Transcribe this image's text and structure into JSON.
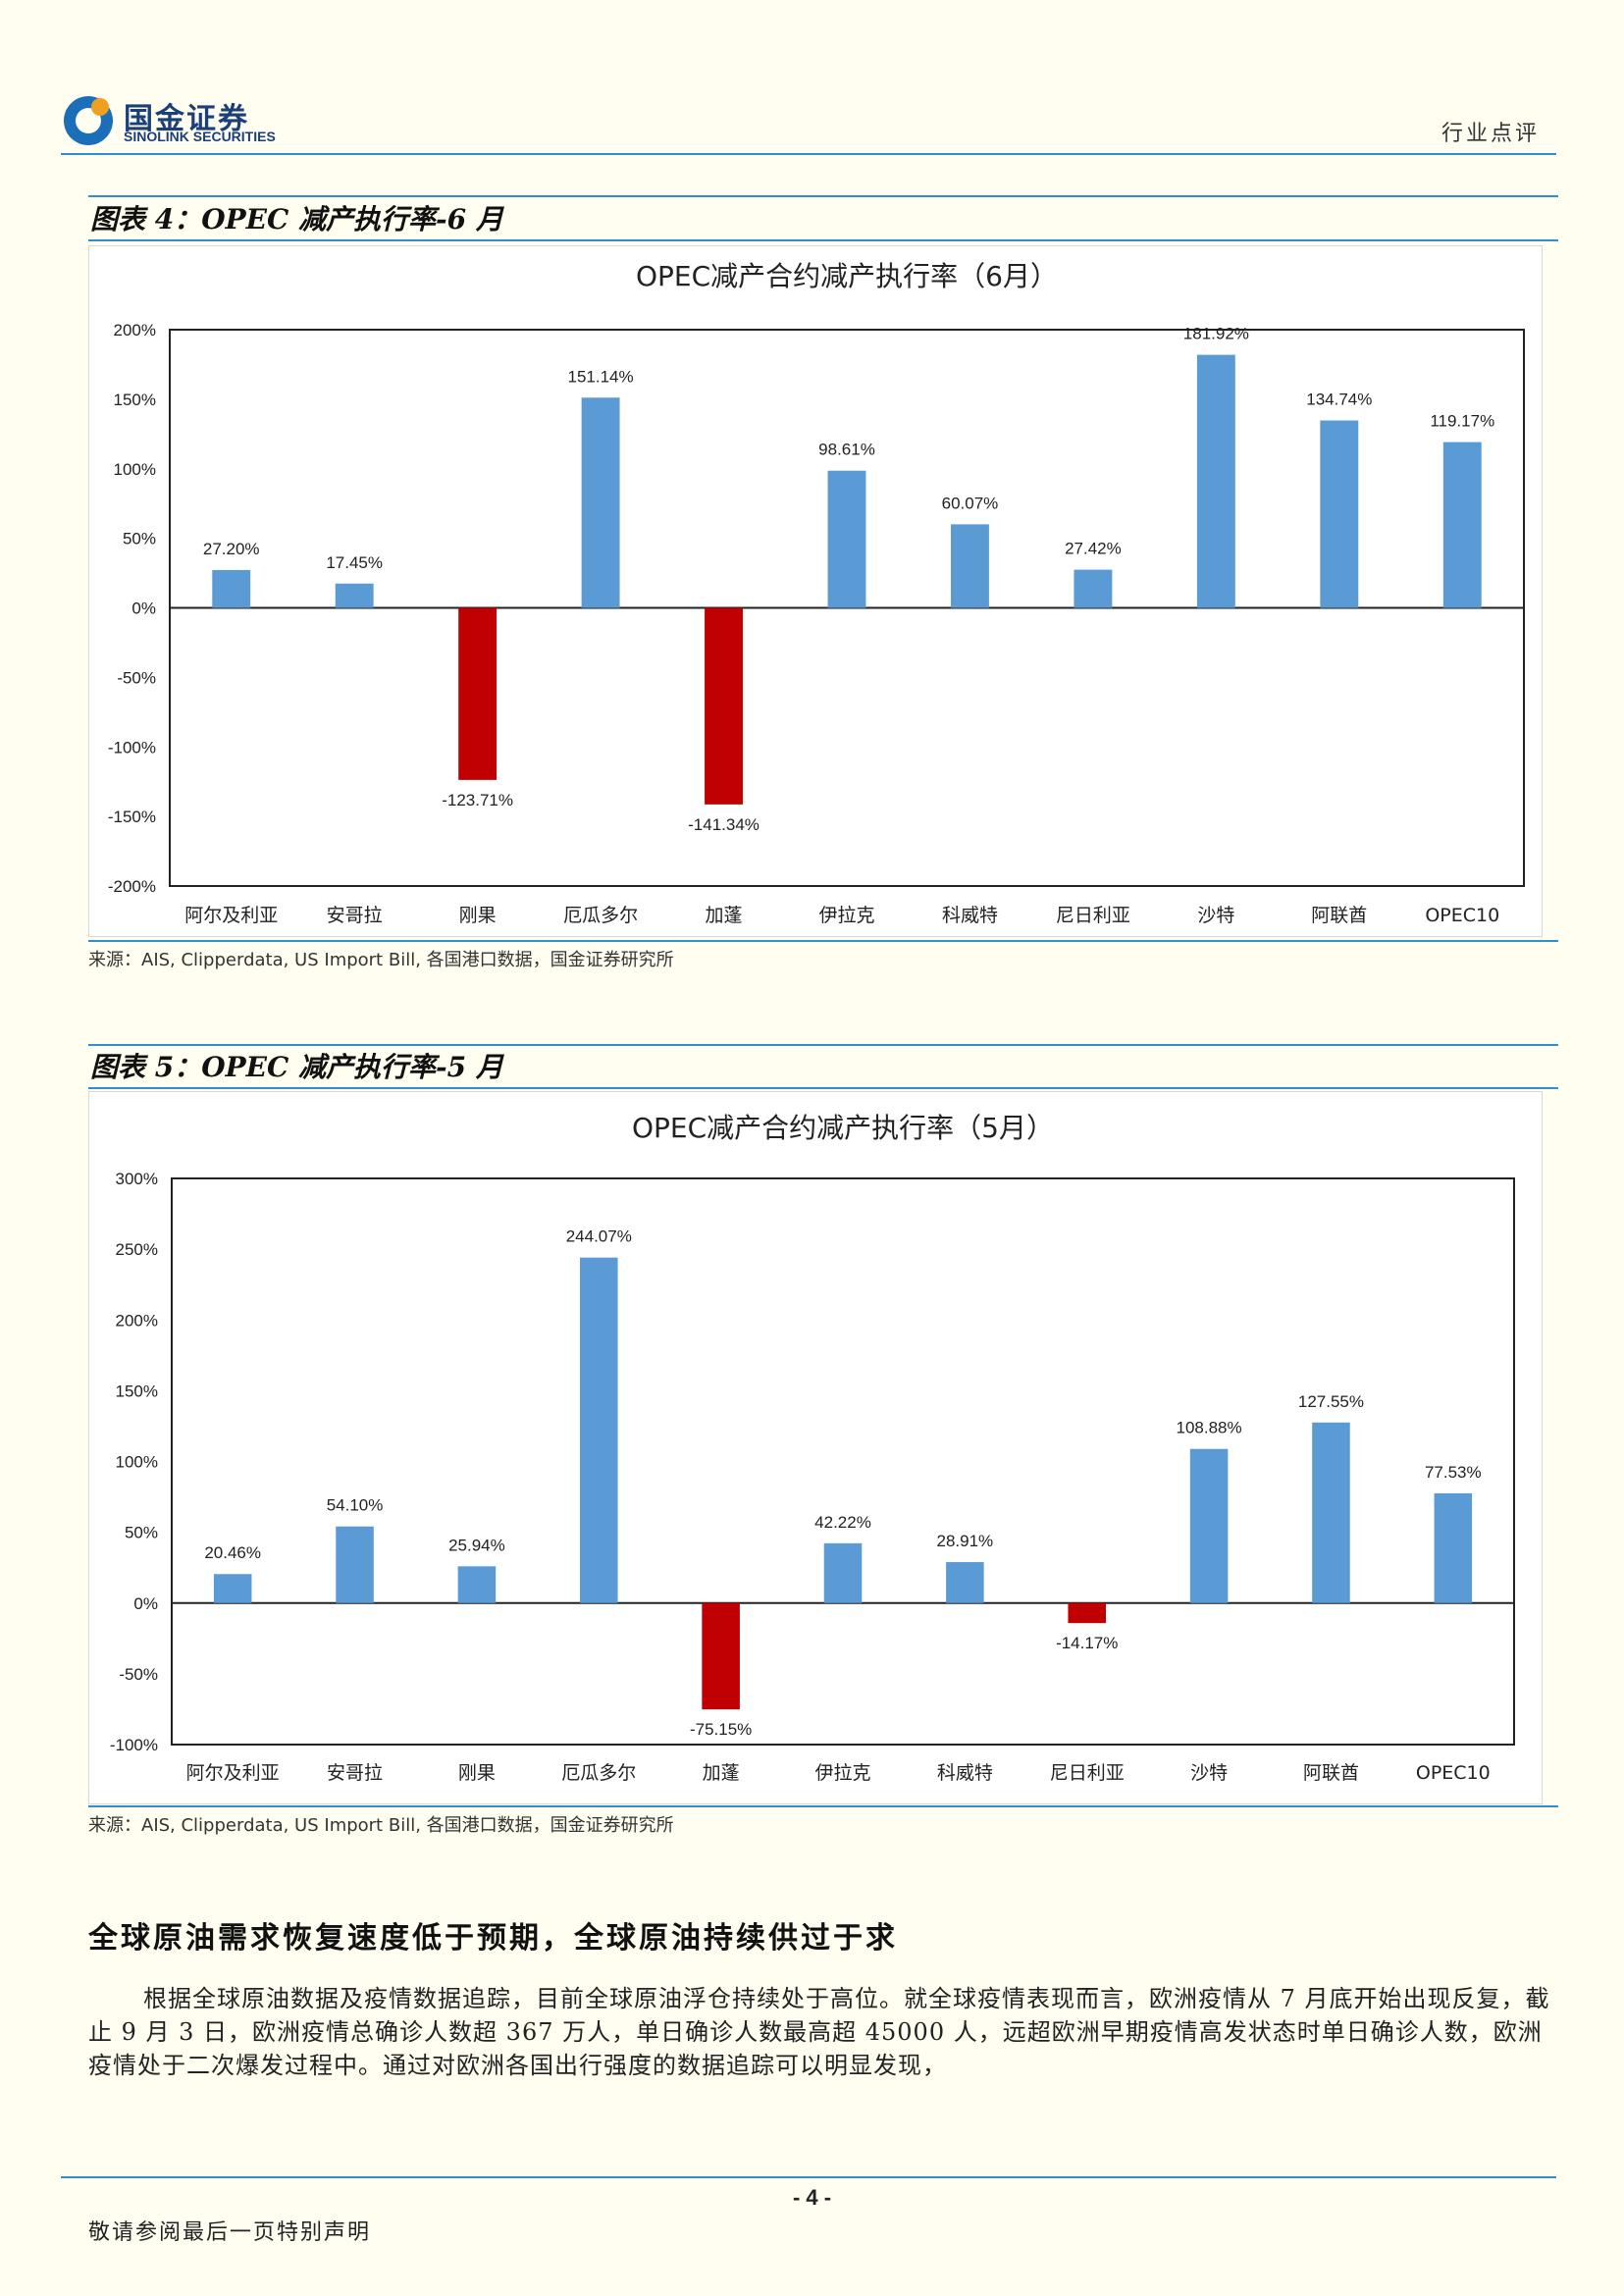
{
  "header": {
    "logo_cn": "国金证券",
    "logo_en": "SINOLINK SECURITIES",
    "section_label": "行业点评",
    "colors": {
      "rule": "#2f8fc8",
      "logo_blue": "#1a3f7a",
      "logo_orange": "#f0a020"
    }
  },
  "figures": [
    {
      "caption": "图表 4：OPEC 减产执行率-6 月",
      "source": "来源：AIS, Clipperdata, US Import Bill, 各国港口数据，国金证券研究所"
    },
    {
      "caption": "图表 5：OPEC 减产执行率-5 月",
      "source": "来源：AIS, Clipperdata, US Import Bill, 各国港口数据，国金证券研究所"
    }
  ],
  "chart_data": [
    {
      "type": "bar",
      "title": "OPEC减产合约减产执行率（6月）",
      "categories": [
        "阿尔及利亚",
        "安哥拉",
        "刚果",
        "厄瓜多尔",
        "加蓬",
        "伊拉克",
        "科威特",
        "尼日利亚",
        "沙特",
        "阿联酋",
        "OPEC10"
      ],
      "values": [
        27.2,
        17.45,
        -123.71,
        151.14,
        -141.34,
        98.61,
        60.07,
        27.42,
        181.92,
        134.74,
        119.17
      ],
      "labels": [
        "27.20%",
        "17.45%",
        "-123.71%",
        "151.14%",
        "-141.34%",
        "98.61%",
        "60.07%",
        "27.42%",
        "181.92%",
        "134.74%",
        "119.17%"
      ],
      "yticks": [
        "200%",
        "150%",
        "100%",
        "50%",
        "0%",
        "-50%",
        "-100%",
        "-150%",
        "-200%"
      ],
      "ylim": [
        -200,
        200
      ],
      "grid": false,
      "legend": "none",
      "colors": {
        "positive": "#5b9bd5",
        "negative": "#c00000"
      }
    },
    {
      "type": "bar",
      "title": "OPEC减产合约减产执行率（5月）",
      "categories": [
        "阿尔及利亚",
        "安哥拉",
        "刚果",
        "厄瓜多尔",
        "加蓬",
        "伊拉克",
        "科威特",
        "尼日利亚",
        "沙特",
        "阿联酋",
        "OPEC10"
      ],
      "values": [
        20.46,
        54.1,
        25.94,
        244.07,
        -75.15,
        42.22,
        28.91,
        -14.17,
        108.88,
        127.55,
        77.53
      ],
      "labels": [
        "20.46%",
        "54.10%",
        "25.94%",
        "244.07%",
        "-75.15%",
        "42.22%",
        "28.91%",
        "-14.17%",
        "108.88%",
        "127.55%",
        "77.53%"
      ],
      "yticks": [
        "300%",
        "250%",
        "200%",
        "150%",
        "100%",
        "50%",
        "0%",
        "-50%",
        "-100%"
      ],
      "ylim": [
        -100,
        300
      ],
      "grid": false,
      "legend": "none",
      "colors": {
        "positive": "#5b9bd5",
        "negative": "#c00000"
      }
    }
  ],
  "section": {
    "heading": "全球原油需求恢复速度低于预期，全球原油持续供过于求",
    "paragraph": "根据全球原油数据及疫情数据追踪，目前全球原油浮仓持续处于高位。就全球疫情表现而言，欧洲疫情从 7 月底开始出现反复，截止 9 月 3 日，欧洲疫情总确诊人数超 367 万人，单日确诊人数最高超 45000 人，远超欧洲早期疫情高发状态时单日确诊人数，欧洲疫情处于二次爆发过程中。通过对欧洲各国出行强度的数据追踪可以明显发现，"
  },
  "footer": {
    "page_number": "- 4 -",
    "disclaimer": "敬请参阅最后一页特别声明"
  }
}
